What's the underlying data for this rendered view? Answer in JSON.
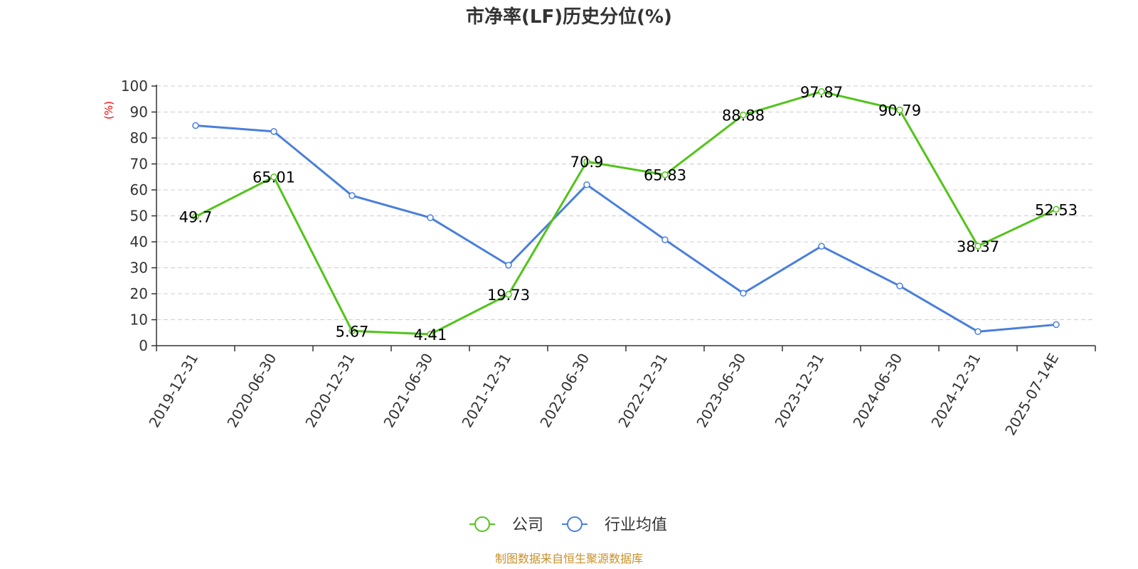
{
  "chart_data": {
    "type": "line",
    "title": "市净率(LF)历史分位(%)",
    "ylabel": "(%)",
    "xlabel": "",
    "ylim": [
      0,
      100
    ],
    "yticks": [
      0,
      10,
      20,
      30,
      40,
      50,
      60,
      70,
      80,
      90,
      100
    ],
    "grid": true,
    "legend_position": "bottom-center",
    "categories": [
      "2019-12-31",
      "2020-06-30",
      "2020-12-31",
      "2021-06-30",
      "2021-12-31",
      "2022-06-30",
      "2022-12-31",
      "2023-06-30",
      "2023-12-31",
      "2024-06-30",
      "2024-12-31",
      "2025-07-14E"
    ],
    "series": [
      {
        "name": "公司",
        "color": "#52c41a",
        "show_labels": true,
        "values": [
          49.7,
          65.01,
          5.67,
          4.41,
          19.73,
          70.9,
          65.83,
          88.88,
          97.87,
          90.79,
          38.37,
          52.53
        ]
      },
      {
        "name": "行业均值",
        "color": "#4a7fdb",
        "show_labels": false,
        "values": [
          84.8,
          82.5,
          57.8,
          49.3,
          31.0,
          62.0,
          40.8,
          20.2,
          38.3,
          23.0,
          5.4,
          8.1
        ]
      }
    ]
  },
  "footer": {
    "source": "制图数据来自恒生聚源数据库",
    "color": "#c8902a"
  }
}
